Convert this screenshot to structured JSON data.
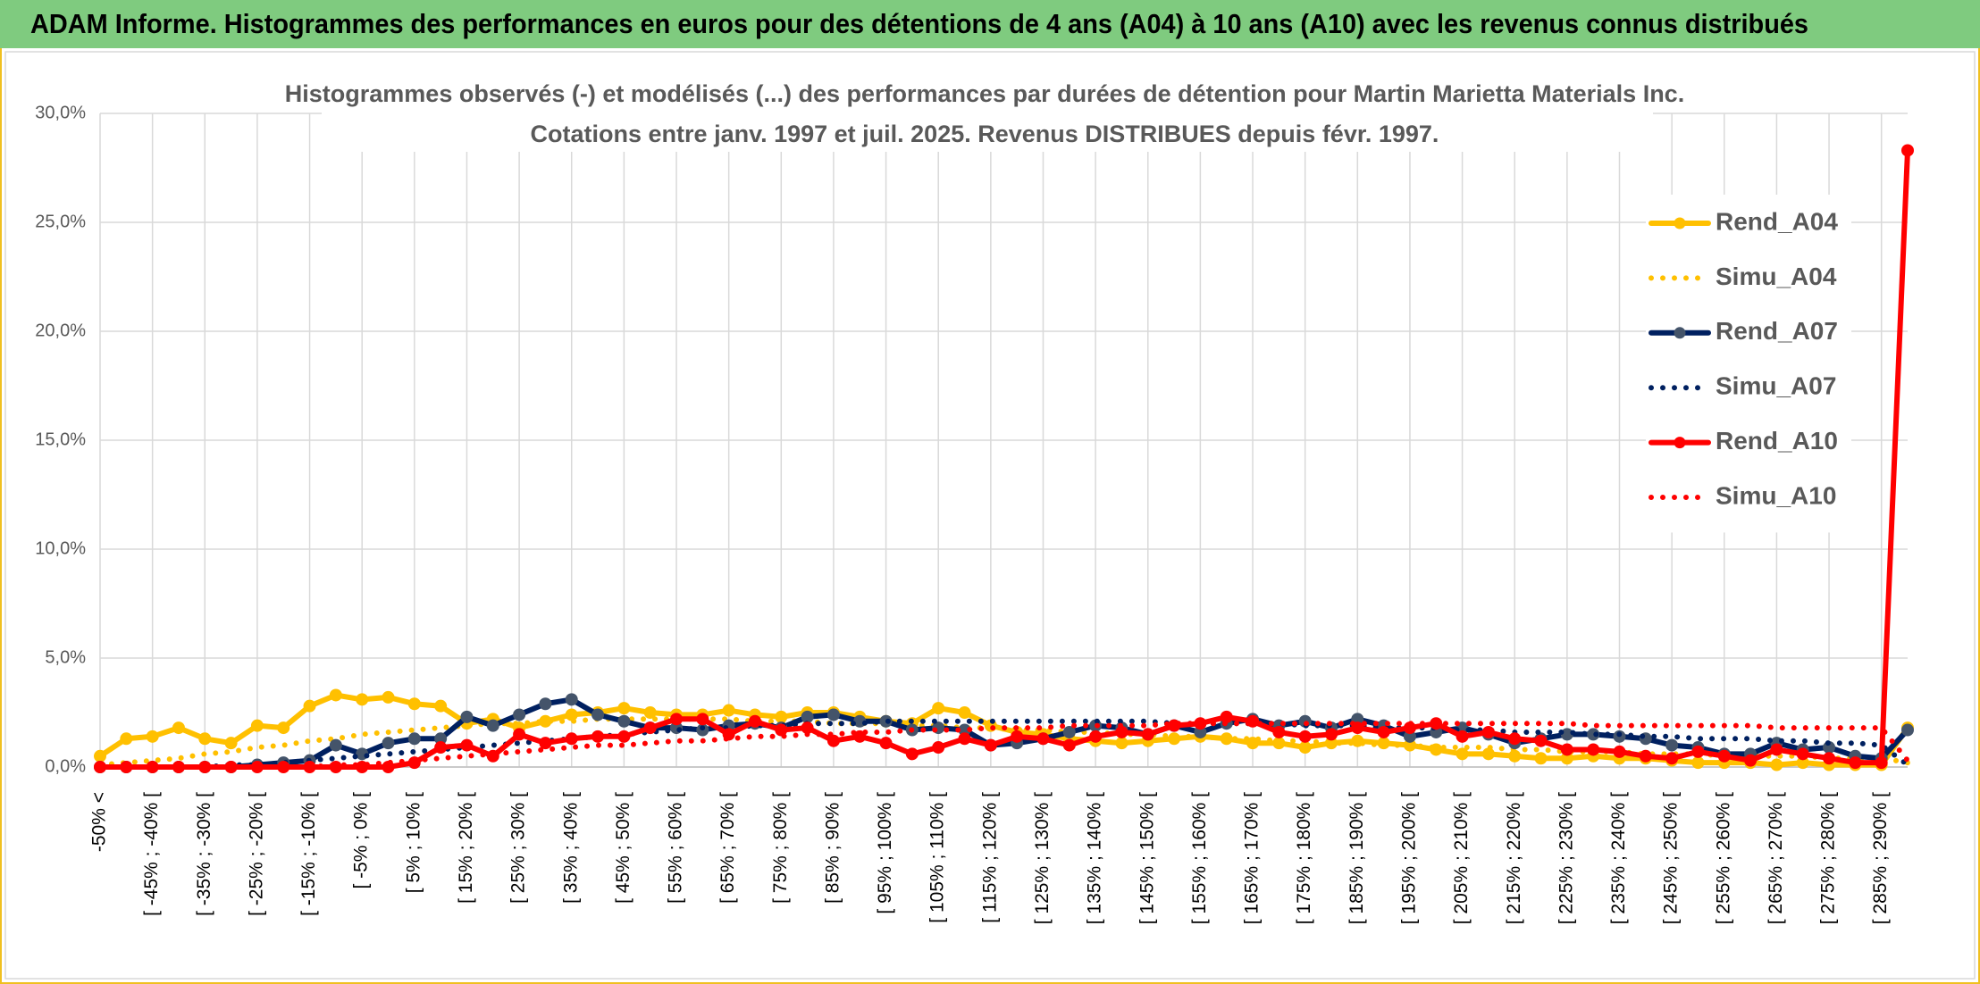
{
  "chart_data": {
    "type": "line",
    "title": "ADAM Informe. Histogrammes des performances en euros pour des détentions de 4 ans (A04) à 10 ans (A10) avec les revenus connus distribués",
    "subtitle": [
      "Histogrammes observés (-) et modélisés (...) des performances par durées de détention pour Martin Marietta Materials Inc.",
      "Cotations entre janv. 1997 et juil. 2025. Revenus DISTRIBUES depuis févr. 1997."
    ],
    "categories": [
      "-50% <",
      null,
      "[ -45% ; -40% [",
      null,
      "[ -35% ; -30% [",
      null,
      "[ -25% ; -20% [",
      null,
      "[ -15% ; -10% [",
      null,
      "[ -5% ; 0% [",
      null,
      "[ 5% ; 10% [",
      null,
      "[ 15% ; 20% [",
      null,
      "[ 25% ; 30% [",
      null,
      "[ 35% ; 40% [",
      null,
      "[ 45% ; 50% [",
      null,
      "[ 55% ; 60% [",
      null,
      "[ 65% ; 70% [",
      null,
      "[ 75% ; 80% [",
      null,
      "[ 85% ; 90% [",
      null,
      "[ 95% ; 100% [",
      null,
      "[ 105% ; 110% [",
      null,
      "[ 115% ; 120% [",
      null,
      "[ 125% ; 130% [",
      null,
      "[ 135% ; 140% [",
      null,
      "[ 145% ; 150% [",
      null,
      "[ 155% ; 160% [",
      null,
      "[ 165% ; 170% [",
      null,
      "[ 175% ; 180% [",
      null,
      "[ 185% ; 190% [",
      null,
      "[ 195% ; 200% [",
      null,
      "[ 205% ; 210% [",
      null,
      "[ 215% ; 220% [",
      null,
      "[ 225% ; 230% [",
      null,
      "[ 235% ; 240% [",
      null,
      "[ 245% ; 250% [",
      null,
      "[ 255% ; 260% [",
      null,
      "[ 265% ; 270% [",
      null,
      "[ 275% ; 280% [",
      null,
      "[ 285% ; 290% [",
      null
    ],
    "series": [
      {
        "name": "Rend_A04",
        "color": "#ffc000",
        "marker_color": "#ffc000",
        "dash": false,
        "values": [
          0.5,
          1.3,
          1.4,
          1.8,
          1.3,
          1.1,
          1.9,
          1.8,
          2.8,
          3.3,
          3.1,
          3.2,
          2.9,
          2.8,
          2.0,
          2.2,
          1.8,
          2.1,
          2.4,
          2.5,
          2.7,
          2.5,
          2.4,
          2.4,
          2.6,
          2.4,
          2.3,
          2.5,
          2.5,
          2.3,
          2.1,
          2.0,
          2.7,
          2.5,
          1.9,
          1.6,
          1.5,
          1.3,
          1.2,
          1.1,
          1.2,
          1.3,
          1.4,
          1.3,
          1.1,
          1.1,
          0.9,
          1.1,
          1.2,
          1.1,
          1.0,
          0.8,
          0.6,
          0.6,
          0.5,
          0.4,
          0.4,
          0.5,
          0.4,
          0.4,
          0.3,
          0.2,
          0.2,
          0.2,
          0.1,
          0.2,
          0.1,
          0.1,
          0.1,
          1.8
        ]
      },
      {
        "name": "Simu_A04",
        "color": "#ffc000",
        "dash": true,
        "values": [
          0.1,
          0.2,
          0.3,
          0.4,
          0.6,
          0.7,
          0.9,
          1.0,
          1.2,
          1.3,
          1.5,
          1.6,
          1.7,
          1.8,
          1.9,
          2.0,
          2.0,
          2.1,
          2.1,
          2.2,
          2.2,
          2.2,
          2.2,
          2.2,
          2.2,
          2.1,
          2.1,
          2.1,
          2.0,
          2.0,
          2.0,
          1.9,
          1.9,
          1.8,
          1.8,
          1.7,
          1.7,
          1.6,
          1.6,
          1.5,
          1.5,
          1.4,
          1.4,
          1.3,
          1.3,
          1.2,
          1.2,
          1.1,
          1.1,
          1.0,
          1.0,
          0.9,
          0.9,
          0.9,
          0.8,
          0.8,
          0.7,
          0.7,
          0.7,
          0.6,
          0.6,
          0.6,
          0.5,
          0.5,
          0.5,
          0.5,
          0.4,
          0.4,
          0.4,
          0.2
        ]
      },
      {
        "name": "Rend_A07",
        "color": "#002060",
        "marker_color": "#44546a",
        "dash": false,
        "values": [
          0,
          0,
          0,
          0,
          0,
          0,
          0.1,
          0.2,
          0.3,
          1.0,
          0.6,
          1.1,
          1.3,
          1.3,
          2.3,
          1.9,
          2.4,
          2.9,
          3.1,
          2.4,
          2.1,
          1.8,
          1.8,
          1.7,
          1.9,
          2.0,
          1.8,
          2.3,
          2.4,
          2.1,
          2.1,
          1.7,
          1.8,
          1.7,
          1.0,
          1.1,
          1.3,
          1.6,
          1.9,
          1.8,
          1.5,
          1.9,
          1.6,
          2.0,
          2.2,
          1.9,
          2.1,
          1.8,
          2.2,
          1.9,
          1.4,
          1.6,
          1.8,
          1.5,
          1.1,
          1.3,
          1.5,
          1.5,
          1.4,
          1.3,
          1.0,
          0.9,
          0.6,
          0.6,
          1.1,
          0.8,
          0.9,
          0.5,
          0.4,
          1.7
        ]
      },
      {
        "name": "Simu_A07",
        "color": "#002060",
        "dash": true,
        "values": [
          0,
          0,
          0,
          0,
          0,
          0.1,
          0.1,
          0.2,
          0.3,
          0.4,
          0.5,
          0.6,
          0.7,
          0.8,
          0.9,
          1.0,
          1.1,
          1.2,
          1.3,
          1.4,
          1.5,
          1.6,
          1.7,
          1.8,
          1.8,
          1.9,
          1.9,
          2.0,
          2.0,
          2.0,
          2.1,
          2.1,
          2.1,
          2.1,
          2.1,
          2.1,
          2.1,
          2.1,
          2.1,
          2.1,
          2.1,
          2.0,
          2.0,
          2.0,
          2.0,
          2.0,
          1.9,
          1.9,
          1.9,
          1.8,
          1.8,
          1.8,
          1.7,
          1.7,
          1.6,
          1.6,
          1.6,
          1.5,
          1.5,
          1.4,
          1.4,
          1.3,
          1.3,
          1.3,
          1.2,
          1.2,
          1.1,
          1.1,
          1.0,
          0.1
        ]
      },
      {
        "name": "Rend_A10",
        "color": "#ff0000",
        "marker_color": "#ff0000",
        "dash": false,
        "values": [
          0,
          0,
          0,
          0,
          0,
          0,
          0,
          0,
          0,
          0,
          0,
          0,
          0.2,
          0.9,
          1.0,
          0.5,
          1.5,
          1.1,
          1.3,
          1.4,
          1.4,
          1.8,
          2.2,
          2.2,
          1.5,
          2.1,
          1.7,
          1.8,
          1.2,
          1.4,
          1.1,
          0.6,
          0.9,
          1.3,
          1.0,
          1.4,
          1.3,
          1.0,
          1.4,
          1.6,
          1.5,
          1.9,
          2.0,
          2.3,
          2.1,
          1.6,
          1.4,
          1.5,
          1.8,
          1.6,
          1.8,
          2.0,
          1.4,
          1.6,
          1.3,
          1.2,
          0.8,
          0.8,
          0.7,
          0.5,
          0.4,
          0.7,
          0.5,
          0.3,
          0.8,
          0.6,
          0.4,
          0.2,
          0.2,
          28.3
        ]
      },
      {
        "name": "Simu_A10",
        "color": "#ff0000",
        "dash": true,
        "values": [
          0,
          0,
          0,
          0,
          0,
          0,
          0,
          0,
          0,
          0.1,
          0.1,
          0.2,
          0.3,
          0.4,
          0.5,
          0.6,
          0.7,
          0.8,
          0.9,
          1.0,
          1.0,
          1.1,
          1.2,
          1.2,
          1.3,
          1.4,
          1.4,
          1.5,
          1.5,
          1.6,
          1.6,
          1.7,
          1.7,
          1.7,
          1.8,
          1.8,
          1.8,
          1.9,
          1.9,
          1.9,
          1.9,
          2.0,
          2.0,
          2.0,
          2.0,
          2.0,
          2.0,
          2.0,
          2.0,
          2.0,
          2.0,
          2.0,
          2.0,
          2.0,
          2.0,
          2.0,
          2.0,
          1.9,
          1.9,
          1.9,
          1.9,
          1.9,
          1.9,
          1.9,
          1.8,
          1.8,
          1.8,
          1.8,
          1.8,
          0.3
        ]
      }
    ],
    "ylim": [
      0,
      30
    ],
    "yticks": [
      {
        "value": 0,
        "label": "0,0%"
      },
      {
        "value": 5,
        "label": "5,0%"
      },
      {
        "value": 10,
        "label": "10,0%"
      },
      {
        "value": 15,
        "label": "15,0%"
      },
      {
        "value": 20,
        "label": "20,0%"
      },
      {
        "value": 25,
        "label": "25,0%"
      },
      {
        "value": 30,
        "label": "30,0%"
      }
    ],
    "grid": true,
    "legend": "right"
  }
}
